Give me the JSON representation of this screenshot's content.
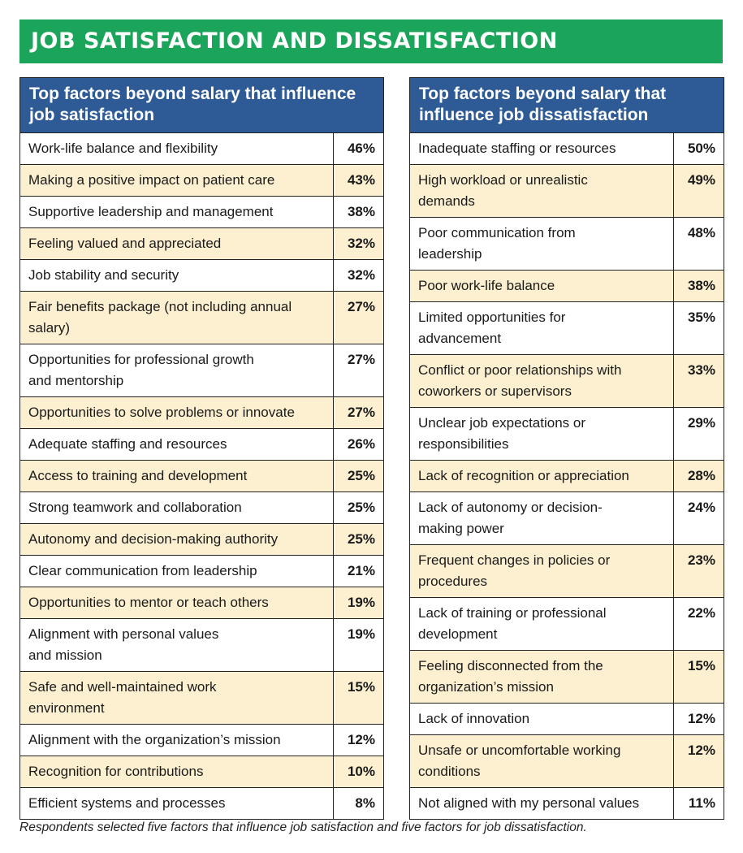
{
  "title": "JOB SATISFACTION AND DISSATISFACTION",
  "colors": {
    "banner": "#1ba55b",
    "header": "#2e5a95",
    "alt_row": "#fcf0d1"
  },
  "satisfaction": {
    "heading": "Top factors beyond salary that influence\njob satisfaction",
    "rows": [
      {
        "label": "Work-life balance and flexibility",
        "value": "46%"
      },
      {
        "label": "Making a positive impact on patient care",
        "value": "43%"
      },
      {
        "label": "Supportive leadership and management",
        "value": "38%"
      },
      {
        "label": "Feeling valued and appreciated",
        "value": "32%"
      },
      {
        "label": "Job stability and security",
        "value": "32%"
      },
      {
        "label": "Fair benefits package (not including annual\nsalary)",
        "value": "27%"
      },
      {
        "label": "Opportunities for professional growth\nand mentorship",
        "value": "27%"
      },
      {
        "label": "Opportunities to solve problems or innovate",
        "value": "27%"
      },
      {
        "label": "Adequate staffing and resources",
        "value": "26%"
      },
      {
        "label": "Access to training and development",
        "value": "25%"
      },
      {
        "label": "Strong teamwork and collaboration",
        "value": "25%"
      },
      {
        "label": "Autonomy and decision-making authority",
        "value": "25%"
      },
      {
        "label": "Clear communication from leadership",
        "value": "21%"
      },
      {
        "label": "Opportunities to mentor or teach others",
        "value": "19%"
      },
      {
        "label": "Alignment with personal values\nand mission",
        "value": "19%"
      },
      {
        "label": "Safe and well-maintained work\nenvironment",
        "value": "15%"
      },
      {
        "label": "Alignment with the organization’s mission",
        "value": "12%"
      },
      {
        "label": "Recognition for contributions",
        "value": "10%"
      },
      {
        "label": "Efficient systems and processes",
        "value": "8%"
      }
    ]
  },
  "dissatisfaction": {
    "heading": "Top factors beyond salary that\ninfluence job dissatisfaction",
    "rows": [
      {
        "label": "Inadequate staffing or resources",
        "value": "50%"
      },
      {
        "label": "High workload or unrealistic\ndemands",
        "value": "49%"
      },
      {
        "label": "Poor communication from\nleadership",
        "value": "48%"
      },
      {
        "label": "Poor work-life balance",
        "value": "38%"
      },
      {
        "label": "Limited opportunities for\nadvancement",
        "value": "35%"
      },
      {
        "label": "Conflict or poor relationships with\ncoworkers or supervisors",
        "value": "33%"
      },
      {
        "label": "Unclear job expectations or\nresponsibilities",
        "value": "29%"
      },
      {
        "label": "Lack of recognition or appreciation",
        "value": "28%"
      },
      {
        "label": "Lack of autonomy or decision-\nmaking power",
        "value": "24%"
      },
      {
        "label": "Frequent changes in policies or\nprocedures",
        "value": "23%"
      },
      {
        "label": "Lack of training or professional\ndevelopment",
        "value": "22%"
      },
      {
        "label": "Feeling disconnected from the\norganization’s mission",
        "value": "15%"
      },
      {
        "label": "Lack of innovation",
        "value": "12%"
      },
      {
        "label": "Unsafe or uncomfortable working\nconditions",
        "value": "12%"
      },
      {
        "label": "Not aligned with my personal values",
        "value": "11%"
      }
    ]
  },
  "footnote": "Respondents selected five factors that influence job satisfaction and five factors for job dissatisfaction."
}
